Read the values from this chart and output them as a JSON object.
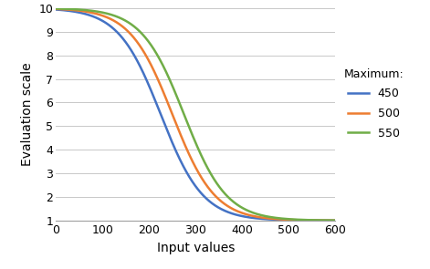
{
  "title": "",
  "xlabel": "Input values",
  "ylabel": "Evaluation scale",
  "xlim": [
    0,
    600
  ],
  "ylim": [
    1,
    10
  ],
  "xticks": [
    0,
    100,
    200,
    300,
    400,
    500,
    600
  ],
  "yticks": [
    1,
    2,
    3,
    4,
    5,
    6,
    7,
    8,
    9,
    10
  ],
  "curves": [
    {
      "label": "450",
      "color": "#4472C4",
      "maximum": 450
    },
    {
      "label": "500",
      "color": "#ED7D31",
      "maximum": 500
    },
    {
      "label": "550",
      "color": "#70AD47",
      "maximum": 550
    }
  ],
  "legend_title": "Maximum:",
  "legend_fontsize": 9,
  "legend_title_fontsize": 9,
  "axis_label_fontsize": 10,
  "tick_fontsize": 9,
  "background_color": "#FFFFFF",
  "grid_color": "#C8C8C8",
  "linewidth": 1.8,
  "k_factor": 0.022
}
